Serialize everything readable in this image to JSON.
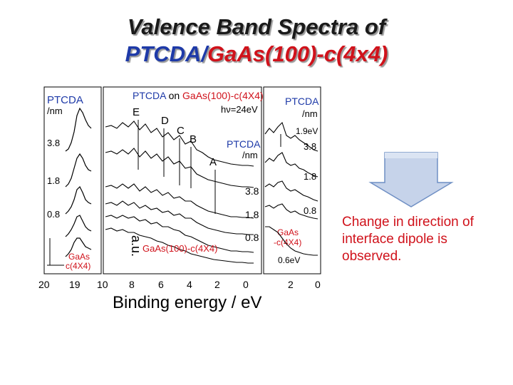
{
  "title": {
    "line1": "Valence Band Spectra of",
    "line2_part1": "PTCDA",
    "line2_sep": "/",
    "line2_part2": "GaAs(100)-c(4x4)"
  },
  "left_panel": {
    "label_main": "PTCDA",
    "label_unit": "/nm",
    "thicknesses": [
      "3.8",
      "1.8",
      "0.8"
    ],
    "substrate_line1": "GaAs",
    "substrate_line2": "c(4X4)",
    "x_ticks": [
      "20",
      "19"
    ]
  },
  "middle_panel": {
    "header_ptcda": "PTCDA",
    "header_on": " on ",
    "header_substrate": "GaAs(100)-c(4X4)",
    "photon": "hν=24eV",
    "peaks": [
      "E",
      "D",
      "C",
      "B",
      "A"
    ],
    "label_main": "PTCDA",
    "label_unit": "/nm",
    "thicknesses": [
      "3.8",
      "1.8",
      "0.8"
    ],
    "substrate": "GaAs(100)-c(4X4)",
    "x_ticks": [
      "10",
      "8",
      "6",
      "4",
      "2",
      "0"
    ],
    "x_label": "Binding energy / eV"
  },
  "right_panel": {
    "label_main": "PTCDA",
    "label_unit": "/nm",
    "thicknesses": [
      "1.9eV",
      "3.8",
      "1.8",
      "0.8"
    ],
    "substrate_line1": "GaAs",
    "substrate_line2": "-c(4X4)",
    "substrate_value": "0.6eV",
    "x_ticks": [
      "2",
      "0"
    ]
  },
  "y_axis_fragment": "a.u.",
  "note": "Change in direction of interface dipole is observed.",
  "colors": {
    "title_dark": "#1a1a1a",
    "accent_blue": "#1e3aa8",
    "accent_red": "#d0121b",
    "arrow_fill": "#c6d3ea",
    "arrow_stroke": "#6f8fc4"
  }
}
